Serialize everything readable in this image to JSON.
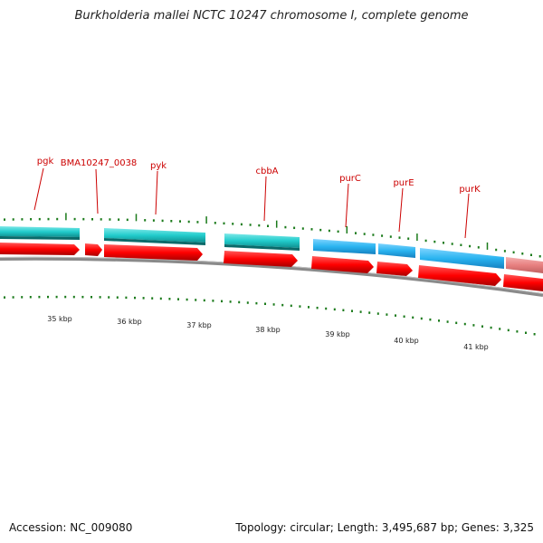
{
  "title": "Burkholderia mallei NCTC 10247 chromosome I, complete genome",
  "footer": {
    "accession": "Accession: NC_009080",
    "topology": "Topology: circular; Length: 3,495,687 bp; Genes: 3,325"
  },
  "colors": {
    "cds_reverse_strand": "#ff0000",
    "cds_reverse_strand_faded": "#e88080",
    "feature_teal": "#22cccc",
    "feature_blue": "#2ab4f0",
    "backbone": "#808080",
    "label": "#cc0000",
    "tick": "#1a7a1a"
  },
  "scale": {
    "unit": "kbp",
    "labels": [
      "35 kbp",
      "36 kbp",
      "37 kbp",
      "38 kbp",
      "39 kbp",
      "40 kbp",
      "41 kbp"
    ]
  },
  "gene_labels": [
    "pgk",
    "BMA10247_0038",
    "pyk",
    "cbbA",
    "purC",
    "purE",
    "purK"
  ]
}
